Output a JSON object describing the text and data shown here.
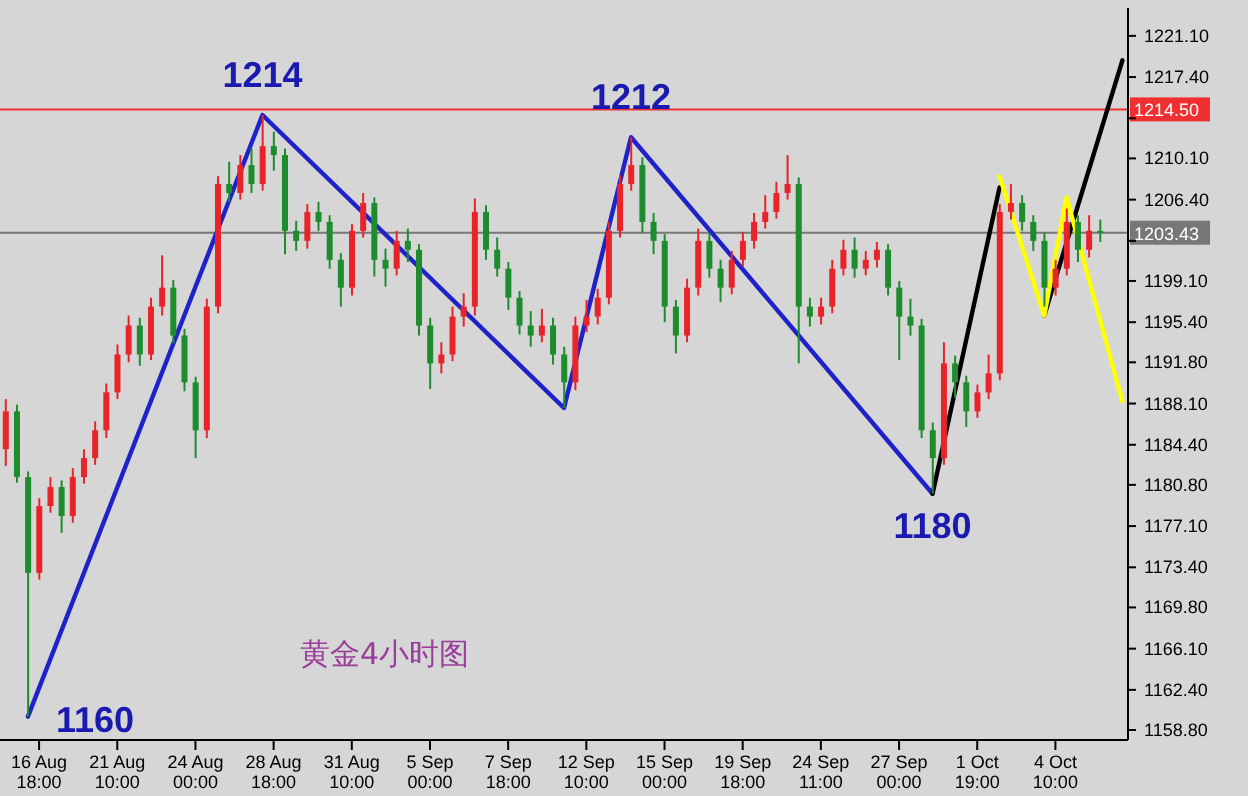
{
  "chart_data": {
    "type": "candlestick",
    "categories": [
      null,
      null,
      null,
      "16 Aug 18:00",
      null,
      null,
      null,
      null,
      null,
      null,
      "21 Aug 10:00",
      null,
      null,
      null,
      null,
      null,
      null,
      "24 Aug 00:00",
      null,
      null,
      null,
      null,
      null,
      null,
      "28 Aug 18:00",
      null,
      null,
      null,
      null,
      null,
      null,
      "31 Aug 10:00",
      null,
      null,
      null,
      null,
      null,
      null,
      "5 Sep 00:00",
      null,
      null,
      null,
      null,
      null,
      null,
      "7 Sep 18:00",
      null,
      null,
      null,
      null,
      null,
      null,
      "12 Sep 10:00",
      null,
      null,
      null,
      null,
      null,
      null,
      "15 Sep 00:00",
      null,
      null,
      null,
      null,
      null,
      null,
      "19 Sep 18:00",
      null,
      null,
      null,
      null,
      null,
      null,
      "24 Sep 11:00",
      null,
      null,
      null,
      null,
      null,
      null,
      "27 Sep 00:00",
      null,
      null,
      null,
      null,
      null,
      null,
      "1 Oct 19:00",
      null,
      null,
      null,
      null,
      null,
      null,
      "4 Oct 10:00",
      null,
      null,
      null,
      null,
      null,
      null
    ],
    "ohlc": [
      [
        1184.0,
        1188.5,
        1182.5,
        1187.4
      ],
      [
        1187.4,
        1188.0,
        1181.0,
        1181.5
      ],
      [
        1181.5,
        1182.0,
        1160,
        1172.9
      ],
      [
        1172.9,
        1179.6,
        1172.3,
        1178.9
      ],
      [
        1178.9,
        1181.5,
        1178.3,
        1180.6
      ],
      [
        1180.6,
        1181.2,
        1176.5,
        1178.0
      ],
      [
        1178.0,
        1182.3,
        1177.4,
        1181.5
      ],
      [
        1181.5,
        1184.0,
        1180.9,
        1183.2
      ],
      [
        1183.2,
        1186.5,
        1182.6,
        1185.7
      ],
      [
        1185.7,
        1189.9,
        1185.0,
        1189.1
      ],
      [
        1189.1,
        1193.4,
        1188.5,
        1192.5
      ],
      [
        1192.5,
        1196.0,
        1191.8,
        1195.1
      ],
      [
        1195.1,
        1195.8,
        1191.5,
        1192.5
      ],
      [
        1192.5,
        1197.6,
        1192.0,
        1196.8
      ],
      [
        1196.8,
        1201.4,
        1196.0,
        1198.5
      ],
      [
        1198.5,
        1199.2,
        1193.5,
        1194.2
      ],
      [
        1194.2,
        1194.8,
        1189.2,
        1190.0
      ],
      [
        1190.0,
        1190.5,
        1183.2,
        1185.7
      ],
      [
        1185.7,
        1197.5,
        1185.0,
        1196.8
      ],
      [
        1196.8,
        1208.5,
        1196.2,
        1207.8
      ],
      [
        1207.8,
        1209.8,
        1206.2,
        1207.0
      ],
      [
        1207.0,
        1210.4,
        1206.4,
        1209.5
      ],
      [
        1209.5,
        1211.0,
        1207.0,
        1207.8
      ],
      [
        1207.8,
        1214,
        1207.2,
        1211.2
      ],
      [
        1211.2,
        1212.5,
        1209.0,
        1210.4
      ],
      [
        1210.4,
        1211.0,
        1201.5,
        1203.6
      ],
      [
        1203.6,
        1204.5,
        1201.8,
        1202.7
      ],
      [
        1202.7,
        1206.0,
        1202.0,
        1205.3
      ],
      [
        1205.3,
        1206.2,
        1203.6,
        1204.4
      ],
      [
        1204.4,
        1205.0,
        1200.2,
        1201.0
      ],
      [
        1201.0,
        1201.6,
        1196.8,
        1198.5
      ],
      [
        1198.5,
        1204.2,
        1197.8,
        1203.6
      ],
      [
        1203.6,
        1207.0,
        1203.0,
        1206.1
      ],
      [
        1206.1,
        1206.6,
        1199.5,
        1201.0
      ],
      [
        1201.0,
        1202.0,
        1198.6,
        1200.2
      ],
      [
        1200.2,
        1203.6,
        1199.6,
        1202.7
      ],
      [
        1202.7,
        1203.8,
        1200.8,
        1201.9
      ],
      [
        1201.9,
        1202.4,
        1194.2,
        1195.1
      ],
      [
        1195.1,
        1195.8,
        1189.4,
        1191.7
      ],
      [
        1191.7,
        1193.6,
        1190.8,
        1192.5
      ],
      [
        1192.5,
        1196.8,
        1191.9,
        1195.9
      ],
      [
        1195.9,
        1198.0,
        1195.0,
        1196.8
      ],
      [
        1196.8,
        1206.5,
        1196.0,
        1205.3
      ],
      [
        1205.3,
        1205.9,
        1201.0,
        1201.9
      ],
      [
        1201.9,
        1203.0,
        1199.5,
        1200.2
      ],
      [
        1200.2,
        1200.8,
        1196.5,
        1197.6
      ],
      [
        1197.6,
        1198.2,
        1194.3,
        1195.1
      ],
      [
        1195.1,
        1196.4,
        1193.2,
        1194.2
      ],
      [
        1194.2,
        1196.6,
        1193.6,
        1195.1
      ],
      [
        1195.1,
        1195.8,
        1191.6,
        1192.5
      ],
      [
        1192.5,
        1193.2,
        1187.7,
        1190.0
      ],
      [
        1190.0,
        1195.9,
        1189.3,
        1195.1
      ],
      [
        1195.1,
        1197.4,
        1194.5,
        1195.9
      ],
      [
        1195.9,
        1198.4,
        1195.2,
        1197.6
      ],
      [
        1197.6,
        1204.4,
        1197.0,
        1203.6
      ],
      [
        1203.6,
        1208.6,
        1203.0,
        1207.8
      ],
      [
        1207.8,
        1212,
        1207.2,
        1209.5
      ],
      [
        1209.5,
        1210.2,
        1203.4,
        1204.4
      ],
      [
        1204.4,
        1205.2,
        1201.5,
        1202.7
      ],
      [
        1202.7,
        1203.3,
        1195.4,
        1196.8
      ],
      [
        1196.8,
        1197.4,
        1192.6,
        1194.2
      ],
      [
        1194.2,
        1199.3,
        1193.6,
        1198.5
      ],
      [
        1198.5,
        1203.8,
        1197.8,
        1202.7
      ],
      [
        1202.7,
        1203.4,
        1199.4,
        1200.2
      ],
      [
        1200.2,
        1201.0,
        1197.2,
        1198.5
      ],
      [
        1198.5,
        1201.8,
        1197.9,
        1201.0
      ],
      [
        1201.0,
        1203.5,
        1200.4,
        1202.7
      ],
      [
        1202.7,
        1205.2,
        1202.0,
        1204.4
      ],
      [
        1204.4,
        1206.8,
        1203.8,
        1205.3
      ],
      [
        1205.3,
        1208.0,
        1204.7,
        1207.0
      ],
      [
        1207.0,
        1210.4,
        1206.4,
        1207.8
      ],
      [
        1207.8,
        1208.4,
        1191.7,
        1196.8
      ],
      [
        1196.8,
        1197.6,
        1195.0,
        1195.9
      ],
      [
        1195.9,
        1197.6,
        1195.2,
        1196.8
      ],
      [
        1196.8,
        1201.0,
        1196.2,
        1200.2
      ],
      [
        1200.2,
        1202.8,
        1199.6,
        1201.9
      ],
      [
        1201.9,
        1203.0,
        1199.4,
        1200.2
      ],
      [
        1200.2,
        1201.8,
        1199.6,
        1201.0
      ],
      [
        1201.0,
        1202.6,
        1200.3,
        1201.9
      ],
      [
        1201.9,
        1202.4,
        1197.8,
        1198.5
      ],
      [
        1198.5,
        1199.1,
        1192.0,
        1195.9
      ],
      [
        1195.9,
        1197.5,
        1194.2,
        1195.1
      ],
      [
        1195.1,
        1195.7,
        1185.0,
        1185.7
      ],
      [
        1185.7,
        1186.4,
        1180,
        1183.2
      ],
      [
        1183.2,
        1193.6,
        1182.6,
        1191.7
      ],
      [
        1191.7,
        1192.4,
        1188.6,
        1190.0
      ],
      [
        1190.0,
        1190.6,
        1186.0,
        1187.4
      ],
      [
        1187.4,
        1189.8,
        1186.8,
        1189.1
      ],
      [
        1189.1,
        1192.5,
        1188.5,
        1190.8
      ],
      [
        1190.8,
        1206.0,
        1190.2,
        1205.3
      ],
      [
        1205.3,
        1207.8,
        1204.6,
        1206.1
      ],
      [
        1206.1,
        1206.8,
        1203.6,
        1204.4
      ],
      [
        1204.4,
        1205.0,
        1201.8,
        1202.7
      ],
      [
        1202.7,
        1203.4,
        1196.8,
        1198.5
      ],
      [
        1198.5,
        1201.0,
        1197.8,
        1200.2
      ],
      [
        1200.2,
        1205.6,
        1199.6,
        1204.4
      ],
      [
        1204.4,
        1205.0,
        1200.8,
        1201.9
      ],
      [
        1201.9,
        1205.0,
        1201.2,
        1203.6
      ],
      [
        1203.6,
        1204.6,
        1202.6,
        1203.43
      ],
      null,
      null
    ],
    "colors": [
      "#e8242b",
      "#1c8c2c",
      "#1c8c2c",
      "#e8242b",
      "#e8242b",
      "#1c8c2c",
      "#e8242b",
      "#e8242b",
      "#e8242b",
      "#e8242b",
      "#e8242b",
      "#e8242b",
      "#1c8c2c",
      "#e8242b",
      "#e8242b",
      "#1c8c2c",
      "#1c8c2c",
      "#1c8c2c",
      "#e8242b",
      "#e8242b",
      "#1c8c2c",
      "#e8242b",
      "#1c8c2c",
      "#e8242b",
      "#1c8c2c",
      "#1c8c2c",
      "#1c8c2c",
      "#e8242b",
      "#1c8c2c",
      "#1c8c2c",
      "#1c8c2c",
      "#e8242b",
      "#e8242b",
      "#1c8c2c",
      "#1c8c2c",
      "#e8242b",
      "#1c8c2c",
      "#1c8c2c",
      "#1c8c2c",
      "#e8242b",
      "#e8242b",
      "#e8242b",
      "#e8242b",
      "#1c8c2c",
      "#1c8c2c",
      "#1c8c2c",
      "#1c8c2c",
      "#1c8c2c",
      "#e8242b",
      "#1c8c2c",
      "#1c8c2c",
      "#e8242b",
      "#e8242b",
      "#e8242b",
      "#e8242b",
      "#e8242b",
      "#e8242b",
      "#1c8c2c",
      "#1c8c2c",
      "#1c8c2c",
      "#1c8c2c",
      "#e8242b",
      "#e8242b",
      "#1c8c2c",
      "#1c8c2c",
      "#e8242b",
      "#e8242b",
      "#e8242b",
      "#e8242b",
      "#e8242b",
      "#e8242b",
      "#1c8c2c",
      "#1c8c2c",
      "#e8242b",
      "#e8242b",
      "#e8242b",
      "#1c8c2c",
      "#e8242b",
      "#e8242b",
      "#1c8c2c",
      "#1c8c2c",
      "#1c8c2c",
      "#1c8c2c",
      "#1c8c2c",
      "#e8242b",
      "#1c8c2c",
      "#1c8c2c",
      "#e8242b",
      "#e8242b",
      "#e8242b",
      "#e8242b",
      "#1c8c2c",
      "#1c8c2c",
      "#1c8c2c",
      "#e8242b",
      "#e8242b",
      "#1c8c2c",
      "#e8242b",
      "#1c8c2c",
      null,
      null
    ],
    "series": [
      {
        "type": "line",
        "color": "#1f22c8",
        "values": [
          null,
          null,
          1160,
          null,
          null,
          null,
          null,
          null,
          null,
          null,
          null,
          null,
          null,
          null,
          null,
          null,
          null,
          null,
          null,
          null,
          null,
          null,
          null,
          1214,
          null,
          null,
          null,
          null,
          null,
          null,
          null,
          null,
          null,
          null,
          null,
          null,
          null,
          null,
          null,
          null,
          null,
          null,
          null,
          null,
          null,
          null,
          null,
          null,
          null,
          null,
          1187.7,
          null,
          null,
          null,
          null,
          null,
          1212,
          null,
          null,
          null,
          null,
          null,
          null,
          null,
          null,
          null,
          null,
          null,
          null,
          null,
          null,
          null,
          null,
          null,
          null,
          null,
          null,
          null,
          null,
          null,
          null,
          null,
          null,
          1180,
          null,
          null,
          null,
          null,
          null,
          null,
          null,
          null,
          null,
          null,
          null,
          null,
          null,
          null,
          null,
          null,
          null
        ]
      },
      {
        "type": "line",
        "color": "#000000",
        "values": [
          null,
          null,
          null,
          null,
          null,
          null,
          null,
          null,
          null,
          null,
          null,
          null,
          null,
          null,
          null,
          null,
          null,
          null,
          null,
          null,
          null,
          null,
          null,
          null,
          null,
          null,
          null,
          null,
          null,
          null,
          null,
          null,
          null,
          null,
          null,
          null,
          null,
          null,
          null,
          null,
          null,
          null,
          null,
          null,
          null,
          null,
          null,
          null,
          null,
          null,
          null,
          null,
          null,
          null,
          null,
          null,
          null,
          null,
          null,
          null,
          null,
          null,
          null,
          null,
          null,
          null,
          null,
          null,
          null,
          null,
          null,
          null,
          null,
          null,
          null,
          null,
          null,
          null,
          null,
          null,
          null,
          null,
          null,
          1180,
          null,
          null,
          null,
          null,
          null,
          1207.5,
          null,
          null,
          null,
          null,
          null,
          null,
          null,
          null,
          null,
          null,
          null
        ]
      },
      {
        "type": "line",
        "color": "#000000",
        "values": [
          null,
          null,
          null,
          null,
          null,
          null,
          null,
          null,
          null,
          null,
          null,
          null,
          null,
          null,
          null,
          null,
          null,
          null,
          null,
          null,
          null,
          null,
          null,
          null,
          null,
          null,
          null,
          null,
          null,
          null,
          null,
          null,
          null,
          null,
          null,
          null,
          null,
          null,
          null,
          null,
          null,
          null,
          null,
          null,
          null,
          null,
          null,
          null,
          null,
          null,
          null,
          null,
          null,
          null,
          null,
          null,
          null,
          null,
          null,
          null,
          null,
          null,
          null,
          null,
          null,
          null,
          null,
          null,
          null,
          null,
          null,
          null,
          null,
          null,
          null,
          null,
          null,
          null,
          null,
          null,
          null,
          null,
          null,
          null,
          null,
          null,
          null,
          null,
          null,
          null,
          null,
          null,
          null,
          1196.0,
          null,
          null,
          null,
          null,
          null,
          null,
          1218.9
        ]
      },
      {
        "type": "line",
        "color": "#ffff00",
        "values": [
          null,
          null,
          null,
          null,
          null,
          null,
          null,
          null,
          null,
          null,
          null,
          null,
          null,
          null,
          null,
          null,
          null,
          null,
          null,
          null,
          null,
          null,
          null,
          null,
          null,
          null,
          null,
          null,
          null,
          null,
          null,
          null,
          null,
          null,
          null,
          null,
          null,
          null,
          null,
          null,
          null,
          null,
          null,
          null,
          null,
          null,
          null,
          null,
          null,
          null,
          null,
          null,
          null,
          null,
          null,
          null,
          null,
          null,
          null,
          null,
          null,
          null,
          null,
          null,
          null,
          null,
          null,
          null,
          null,
          null,
          null,
          null,
          null,
          null,
          null,
          null,
          null,
          null,
          null,
          null,
          null,
          null,
          null,
          null,
          null,
          null,
          null,
          null,
          null,
          1208.5,
          null,
          null,
          null,
          1196.0,
          null,
          1206.6,
          null,
          null,
          null,
          null,
          1188.3
        ]
      }
    ],
    "ylim": [
      1157.9,
      1223.6
    ],
    "yticks": [
      {
        "value": 1158.8,
        "label": "1158.80"
      },
      {
        "value": 1162.4,
        "label": "1162.40"
      },
      {
        "value": 1166.1,
        "label": "1166.10"
      },
      {
        "value": 1169.8,
        "label": "1169.80"
      },
      {
        "value": 1173.4,
        "label": "1173.40"
      },
      {
        "value": 1177.1,
        "label": "1177.10"
      },
      {
        "value": 1180.8,
        "label": "1180.80"
      },
      {
        "value": 1184.4,
        "label": "1184.40"
      },
      {
        "value": 1188.1,
        "label": "1188.10"
      },
      {
        "value": 1191.8,
        "label": "1191.80"
      },
      {
        "value": 1195.4,
        "label": "1195.40"
      },
      {
        "value": 1199.1,
        "label": "1199.10"
      },
      {
        "value": 1202.7,
        "label": null
      },
      {
        "value": 1206.4,
        "label": "1206.40"
      },
      {
        "value": 1210.1,
        "label": "1210.10"
      },
      {
        "value": 1213.7,
        "label": null
      },
      {
        "value": 1217.4,
        "label": "1217.40"
      },
      {
        "value": 1221.1,
        "label": "1221.10"
      }
    ],
    "ref_lines": [
      {
        "axis": "y",
        "value": 1214.5,
        "label": "1214.50",
        "color": "#f03030"
      },
      {
        "axis": "y",
        "value": 1203.43,
        "label": "1203.43",
        "color": "#777777"
      }
    ],
    "annotations": [
      {
        "text": "1214",
        "y": 1214
      },
      {
        "text": "1212",
        "y": 1212
      },
      {
        "text": "1180",
        "y": 1180
      },
      "1160",
      "黄金4小时图"
    ]
  }
}
